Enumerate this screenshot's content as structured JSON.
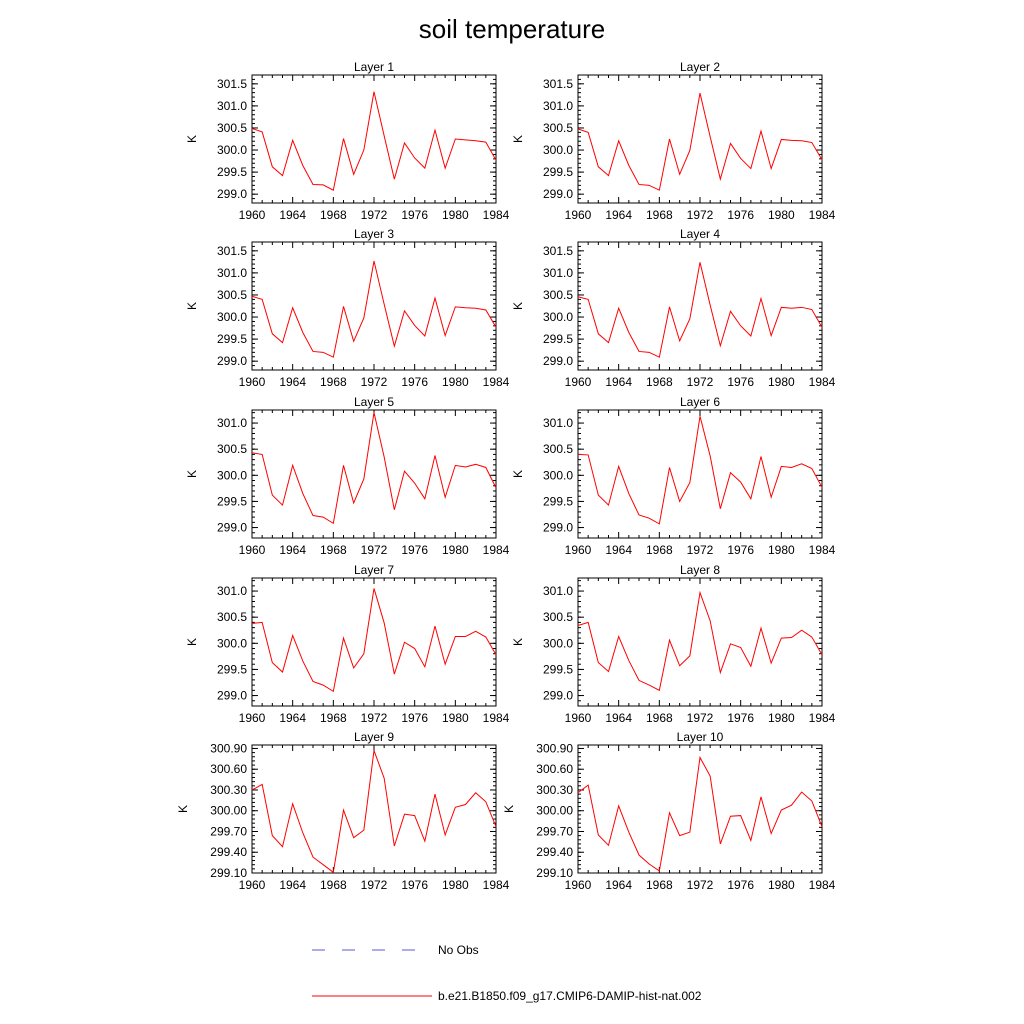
{
  "title": "soil temperature",
  "legend": [
    {
      "label": "No Obs",
      "color": "#5a5ad0",
      "style": "dashed"
    },
    {
      "label": "b.e21.B1850.f09_g17.CMIP6-DAMIP-hist-nat.002",
      "color": "#ff0000",
      "style": "solid"
    }
  ],
  "chart_data": [
    {
      "type": "line",
      "title": "Layer 1",
      "ylabel": "K",
      "xlim": [
        1960,
        1984
      ],
      "ylim": [
        298.8,
        301.7
      ],
      "xticks": [
        "1960",
        "1964",
        "1968",
        "1972",
        "1976",
        "1980",
        "1984"
      ],
      "yticks": [
        "299.0",
        "299.5",
        "300.0",
        "300.5",
        "301.0",
        "301.5"
      ],
      "series": [
        {
          "name": "b.e21.B1850.f09_g17.CMIP6-DAMIP-hist-nat.002",
          "color": "#ff0000",
          "x": [
            1960,
            1961,
            1962,
            1963,
            1964,
            1965,
            1966,
            1967,
            1968,
            1969,
            1970,
            1971,
            1972,
            1973,
            1974,
            1975,
            1976,
            1977,
            1978,
            1979,
            1980,
            1981,
            1982,
            1983,
            1984
          ],
          "values": [
            300.49,
            300.41,
            299.62,
            299.42,
            300.22,
            299.65,
            299.22,
            299.21,
            299.09,
            300.26,
            299.45,
            300.0,
            301.32,
            300.32,
            299.34,
            300.16,
            299.82,
            299.59,
            300.45,
            299.59,
            300.25,
            300.23,
            300.21,
            300.18,
            299.77
          ]
        }
      ]
    },
    {
      "type": "line",
      "title": "Layer 2",
      "ylabel": "K",
      "xlim": [
        1960,
        1984
      ],
      "ylim": [
        298.8,
        301.7
      ],
      "xticks": [
        "1960",
        "1964",
        "1968",
        "1972",
        "1976",
        "1980",
        "1984"
      ],
      "yticks": [
        "299.0",
        "299.5",
        "300.0",
        "300.5",
        "301.0",
        "301.5"
      ],
      "series": [
        {
          "name": "b.e21.B1850.f09_g17.CMIP6-DAMIP-hist-nat.002",
          "color": "#ff0000",
          "x": [
            1960,
            1961,
            1962,
            1963,
            1964,
            1965,
            1966,
            1967,
            1968,
            1969,
            1970,
            1971,
            1972,
            1973,
            1974,
            1975,
            1976,
            1977,
            1978,
            1979,
            1980,
            1981,
            1982,
            1983,
            1984
          ],
          "values": [
            300.48,
            300.4,
            299.62,
            299.42,
            300.21,
            299.65,
            299.22,
            299.2,
            299.09,
            300.25,
            299.45,
            299.99,
            301.29,
            300.3,
            299.34,
            300.15,
            299.81,
            299.58,
            300.43,
            299.58,
            300.24,
            300.22,
            300.21,
            300.17,
            299.78
          ]
        }
      ]
    },
    {
      "type": "line",
      "title": "Layer 3",
      "ylabel": "K",
      "xlim": [
        1960,
        1984
      ],
      "ylim": [
        298.8,
        301.7
      ],
      "xticks": [
        "1960",
        "1964",
        "1968",
        "1972",
        "1976",
        "1980",
        "1984"
      ],
      "yticks": [
        "299.0",
        "299.5",
        "300.0",
        "300.5",
        "301.0",
        "301.5"
      ],
      "series": [
        {
          "name": "b.e21.B1850.f09_g17.CMIP6-DAMIP-hist-nat.002",
          "color": "#ff0000",
          "x": [
            1960,
            1961,
            1962,
            1963,
            1964,
            1965,
            1966,
            1967,
            1968,
            1969,
            1970,
            1971,
            1972,
            1973,
            1974,
            1975,
            1976,
            1977,
            1978,
            1979,
            1980,
            1981,
            1982,
            1983,
            1984
          ],
          "values": [
            300.47,
            300.4,
            299.62,
            299.42,
            300.21,
            299.65,
            299.22,
            299.2,
            299.09,
            300.24,
            299.45,
            299.98,
            301.27,
            300.29,
            299.34,
            300.14,
            299.81,
            299.57,
            300.43,
            299.58,
            300.23,
            300.21,
            300.2,
            300.16,
            299.77
          ]
        }
      ]
    },
    {
      "type": "line",
      "title": "Layer 4",
      "ylabel": "K",
      "xlim": [
        1960,
        1984
      ],
      "ylim": [
        298.8,
        301.7
      ],
      "xticks": [
        "1960",
        "1964",
        "1968",
        "1972",
        "1976",
        "1980",
        "1984"
      ],
      "yticks": [
        "299.0",
        "299.5",
        "300.0",
        "300.5",
        "301.0",
        "301.5"
      ],
      "series": [
        {
          "name": "b.e21.B1850.f09_g17.CMIP6-DAMIP-hist-nat.002",
          "color": "#ff0000",
          "x": [
            1960,
            1961,
            1962,
            1963,
            1964,
            1965,
            1966,
            1967,
            1968,
            1969,
            1970,
            1971,
            1972,
            1973,
            1974,
            1975,
            1976,
            1977,
            1978,
            1979,
            1980,
            1981,
            1982,
            1983,
            1984
          ],
          "values": [
            300.46,
            300.4,
            299.62,
            299.42,
            300.2,
            299.65,
            299.22,
            299.2,
            299.09,
            300.23,
            299.46,
            299.96,
            301.24,
            300.27,
            299.35,
            300.13,
            299.8,
            299.57,
            300.42,
            299.58,
            300.22,
            300.2,
            300.22,
            300.17,
            299.77
          ]
        }
      ]
    },
    {
      "type": "line",
      "title": "Layer 5",
      "ylabel": "K",
      "xlim": [
        1960,
        1984
      ],
      "ylim": [
        298.8,
        301.25
      ],
      "xticks": [
        "1960",
        "1964",
        "1968",
        "1972",
        "1976",
        "1980",
        "1984"
      ],
      "yticks": [
        "299.0",
        "299.5",
        "300.0",
        "300.5",
        "301.0"
      ],
      "series": [
        {
          "name": "b.e21.B1850.f09_g17.CMIP6-DAMIP-hist-nat.002",
          "color": "#ff0000",
          "x": [
            1960,
            1961,
            1962,
            1963,
            1964,
            1965,
            1966,
            1967,
            1968,
            1969,
            1970,
            1971,
            1972,
            1973,
            1974,
            1975,
            1976,
            1977,
            1978,
            1979,
            1980,
            1981,
            1982,
            1983,
            1984
          ],
          "values": [
            300.43,
            300.4,
            299.62,
            299.43,
            300.19,
            299.65,
            299.23,
            299.2,
            299.08,
            300.19,
            299.47,
            299.93,
            301.2,
            300.35,
            299.34,
            300.08,
            299.85,
            299.55,
            300.38,
            299.58,
            300.19,
            300.16,
            300.21,
            300.15,
            299.76
          ]
        }
      ]
    },
    {
      "type": "line",
      "title": "Layer 6",
      "ylabel": "K",
      "xlim": [
        1960,
        1984
      ],
      "ylim": [
        298.8,
        301.25
      ],
      "xticks": [
        "1960",
        "1964",
        "1968",
        "1972",
        "1976",
        "1980",
        "1984"
      ],
      "yticks": [
        "299.0",
        "299.5",
        "300.0",
        "300.5",
        "301.0"
      ],
      "series": [
        {
          "name": "b.e21.B1850.f09_g17.CMIP6-DAMIP-hist-nat.002",
          "color": "#ff0000",
          "x": [
            1960,
            1961,
            1962,
            1963,
            1964,
            1965,
            1966,
            1967,
            1968,
            1969,
            1970,
            1971,
            1972,
            1973,
            1974,
            1975,
            1976,
            1977,
            1978,
            1979,
            1980,
            1981,
            1982,
            1983,
            1984
          ],
          "values": [
            300.4,
            300.39,
            299.62,
            299.43,
            300.17,
            299.65,
            299.24,
            299.18,
            299.07,
            300.15,
            299.5,
            299.86,
            301.13,
            300.37,
            299.36,
            300.05,
            299.87,
            299.55,
            300.36,
            299.58,
            300.17,
            300.15,
            300.22,
            300.13,
            299.77
          ]
        }
      ]
    },
    {
      "type": "line",
      "title": "Layer 7",
      "ylabel": "K",
      "xlim": [
        1960,
        1984
      ],
      "ylim": [
        298.8,
        301.25
      ],
      "xticks": [
        "1960",
        "1964",
        "1968",
        "1972",
        "1976",
        "1980",
        "1984"
      ],
      "yticks": [
        "299.0",
        "299.5",
        "300.0",
        "300.5",
        "301.0"
      ],
      "series": [
        {
          "name": "b.e21.B1850.f09_g17.CMIP6-DAMIP-hist-nat.002",
          "color": "#ff0000",
          "x": [
            1960,
            1961,
            1962,
            1963,
            1964,
            1965,
            1966,
            1967,
            1968,
            1969,
            1970,
            1971,
            1972,
            1973,
            1974,
            1975,
            1976,
            1977,
            1978,
            1979,
            1980,
            1981,
            1982,
            1983,
            1984
          ],
          "values": [
            300.38,
            300.4,
            299.63,
            299.45,
            300.15,
            299.66,
            299.27,
            299.2,
            299.08,
            300.1,
            299.53,
            299.8,
            301.05,
            300.39,
            299.41,
            300.02,
            299.9,
            299.55,
            300.33,
            299.6,
            300.13,
            300.13,
            300.23,
            300.12,
            299.78
          ]
        }
      ]
    },
    {
      "type": "line",
      "title": "Layer 8",
      "ylabel": "K",
      "xlim": [
        1960,
        1984
      ],
      "ylim": [
        298.8,
        301.25
      ],
      "xticks": [
        "1960",
        "1964",
        "1968",
        "1972",
        "1976",
        "1980",
        "1984"
      ],
      "yticks": [
        "299.0",
        "299.5",
        "300.0",
        "300.5",
        "301.0"
      ],
      "series": [
        {
          "name": "b.e21.B1850.f09_g17.CMIP6-DAMIP-hist-nat.002",
          "color": "#ff0000",
          "x": [
            1960,
            1961,
            1962,
            1963,
            1964,
            1965,
            1966,
            1967,
            1968,
            1969,
            1970,
            1971,
            1972,
            1973,
            1974,
            1975,
            1976,
            1977,
            1978,
            1979,
            1980,
            1981,
            1982,
            1983,
            1984
          ],
          "values": [
            300.34,
            300.4,
            299.63,
            299.46,
            300.13,
            299.67,
            299.29,
            299.2,
            299.1,
            300.06,
            299.57,
            299.76,
            300.97,
            300.43,
            299.44,
            299.99,
            299.92,
            299.56,
            300.29,
            299.62,
            300.1,
            300.11,
            300.25,
            300.12,
            299.78
          ]
        }
      ]
    },
    {
      "type": "line",
      "title": "Layer 9",
      "ylabel": "K",
      "xlim": [
        1960,
        1984
      ],
      "ylim": [
        299.1,
        300.95
      ],
      "xticks": [
        "1960",
        "1964",
        "1968",
        "1972",
        "1976",
        "1980",
        "1984"
      ],
      "yticks": [
        "299.10",
        "299.40",
        "299.70",
        "300.00",
        "300.30",
        "300.60",
        "300.90"
      ],
      "series": [
        {
          "name": "b.e21.B1850.f09_g17.CMIP6-DAMIP-hist-nat.002",
          "color": "#ff0000",
          "x": [
            1960,
            1961,
            1962,
            1963,
            1964,
            1965,
            1966,
            1967,
            1968,
            1969,
            1970,
            1971,
            1972,
            1973,
            1974,
            1975,
            1976,
            1977,
            1978,
            1979,
            1980,
            1981,
            1982,
            1983,
            1984
          ],
          "values": [
            300.3,
            300.38,
            299.64,
            299.48,
            300.1,
            299.68,
            299.33,
            299.22,
            299.11,
            300.01,
            299.61,
            299.72,
            300.87,
            300.47,
            299.49,
            299.95,
            299.93,
            299.56,
            300.24,
            299.65,
            300.05,
            300.09,
            300.26,
            300.13,
            299.77
          ]
        }
      ]
    },
    {
      "type": "line",
      "title": "Layer 10",
      "ylabel": "K",
      "xlim": [
        1960,
        1984
      ],
      "ylim": [
        299.1,
        300.95
      ],
      "xticks": [
        "1960",
        "1964",
        "1968",
        "1972",
        "1976",
        "1980",
        "1984"
      ],
      "yticks": [
        "299.10",
        "299.40",
        "299.70",
        "300.00",
        "300.30",
        "300.60",
        "300.90"
      ],
      "series": [
        {
          "name": "b.e21.B1850.f09_g17.CMIP6-DAMIP-hist-nat.002",
          "color": "#ff0000",
          "x": [
            1960,
            1961,
            1962,
            1963,
            1964,
            1965,
            1966,
            1967,
            1968,
            1969,
            1970,
            1971,
            1972,
            1973,
            1974,
            1975,
            1976,
            1977,
            1978,
            1979,
            1980,
            1981,
            1982,
            1983,
            1984
          ],
          "values": [
            300.26,
            300.37,
            299.65,
            299.5,
            300.07,
            299.69,
            299.36,
            299.23,
            299.13,
            299.97,
            299.64,
            299.69,
            300.77,
            300.5,
            299.52,
            299.92,
            299.93,
            299.57,
            300.2,
            299.67,
            300.01,
            300.08,
            300.27,
            300.14,
            299.77
          ]
        }
      ]
    }
  ]
}
